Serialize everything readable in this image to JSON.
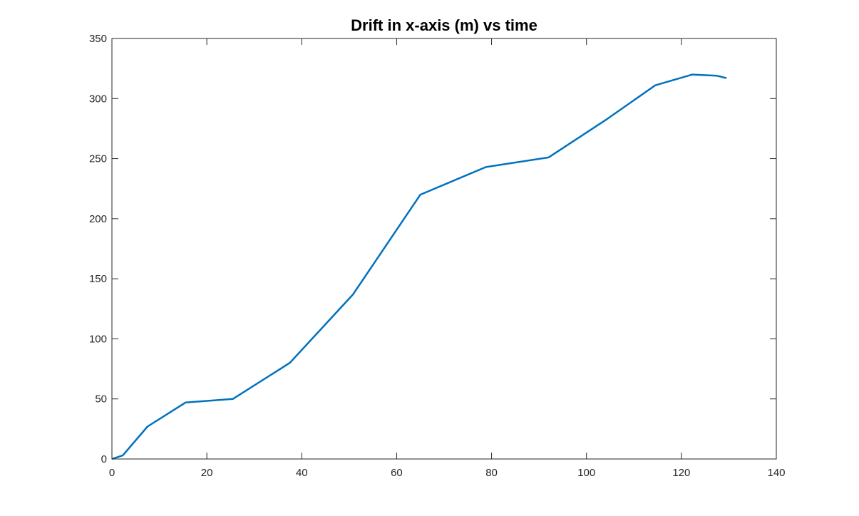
{
  "chart_data": {
    "type": "line",
    "title": "Drift in x-axis (m) vs time",
    "xlabel": "",
    "ylabel": "",
    "xlim": [
      0,
      140
    ],
    "ylim": [
      0,
      350
    ],
    "xticks": [
      0,
      20,
      40,
      60,
      80,
      100,
      120,
      140
    ],
    "yticks": [
      0,
      50,
      100,
      150,
      200,
      250,
      300,
      350
    ],
    "grid": false,
    "box": true,
    "series": [
      {
        "color": "#0072BD",
        "x": [
          0,
          2.3,
          7.5,
          15.5,
          25.5,
          37.5,
          50.8,
          65.0,
          78.8,
          92.0,
          104.0,
          114.5,
          122.3,
          127.5,
          129.5
        ],
        "y": [
          0,
          3,
          27,
          47,
          50,
          80,
          137,
          220,
          243,
          251,
          282,
          311,
          320,
          319,
          317
        ]
      }
    ]
  }
}
